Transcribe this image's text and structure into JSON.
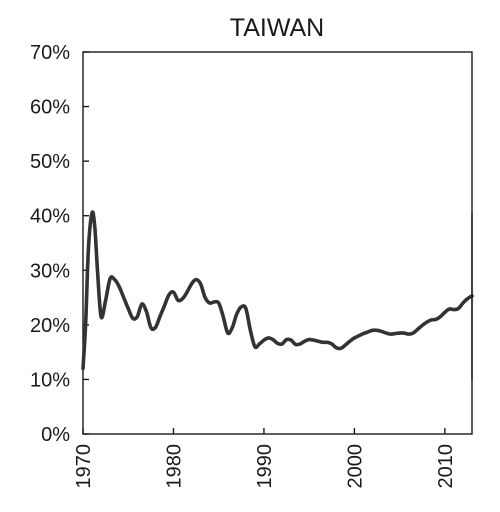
{
  "chart_data": {
    "type": "line",
    "title": "TAIWAN",
    "xlabel": "",
    "ylabel": "",
    "xlim": [
      1970,
      2013
    ],
    "ylim": [
      0,
      70
    ],
    "xticks": [
      1970,
      1980,
      1990,
      2000,
      2010
    ],
    "xtick_labels": [
      "1970",
      "1980",
      "1990",
      "2000",
      "2010"
    ],
    "yticks": [
      0,
      10,
      20,
      30,
      40,
      50,
      60,
      70
    ],
    "ytick_labels": [
      "0%",
      "10%",
      "20%",
      "30%",
      "40%",
      "50%",
      "60%",
      "70%"
    ],
    "grid": false,
    "legend": "none",
    "series": [
      {
        "x": [
          1970.0,
          1970.3,
          1970.6,
          1971.0,
          1971.3,
          1971.6,
          1972.0,
          1972.5,
          1973.0,
          1973.5,
          1974.0,
          1974.5,
          1975.0,
          1975.5,
          1976.0,
          1976.5,
          1977.0,
          1977.5,
          1978.0,
          1978.5,
          1979.0,
          1979.5,
          1980.0,
          1980.5,
          1981.0,
          1981.5,
          1982.0,
          1982.5,
          1983.0,
          1983.5,
          1984.0,
          1984.5,
          1985.0,
          1985.5,
          1986.0,
          1986.5,
          1987.0,
          1987.5,
          1988.0,
          1988.5,
          1989.0,
          1989.5,
          1990.0,
          1990.5,
          1991.0,
          1991.5,
          1992.0,
          1992.5,
          1993.0,
          1993.5,
          1994.0,
          1994.5,
          1995.0,
          1995.5,
          1996.0,
          1996.5,
          1997.0,
          1997.5,
          1998.0,
          1998.5,
          1999.0,
          1999.5,
          2000.0,
          2000.5,
          2001.0,
          2001.5,
          2002.0,
          2002.5,
          2003.0,
          2003.5,
          2004.0,
          2004.5,
          2005.0,
          2005.5,
          2006.0,
          2006.5,
          2007.0,
          2007.5,
          2008.0,
          2008.5,
          2009.0,
          2009.5,
          2010.0,
          2010.5,
          2011.0,
          2011.5,
          2012.0,
          2012.5,
          2013.0
        ],
        "y": [
          12.0,
          20.5,
          34.0,
          40.5,
          38.0,
          30.0,
          21.5,
          24.5,
          28.5,
          28.3,
          27.0,
          25.0,
          23.0,
          21.2,
          21.5,
          23.8,
          22.5,
          19.5,
          19.5,
          21.5,
          23.5,
          25.5,
          26.0,
          24.5,
          24.8,
          26.0,
          27.5,
          28.3,
          27.5,
          25.0,
          24.0,
          24.2,
          24.0,
          21.5,
          18.5,
          19.5,
          22.0,
          23.3,
          23.0,
          19.0,
          16.0,
          16.5,
          17.2,
          17.6,
          17.3,
          16.6,
          16.5,
          17.3,
          17.2,
          16.4,
          16.5,
          17.0,
          17.3,
          17.2,
          17.0,
          16.8,
          16.8,
          16.5,
          15.8,
          15.7,
          16.3,
          17.0,
          17.6,
          18.0,
          18.4,
          18.7,
          19.0,
          19.0,
          18.8,
          18.5,
          18.3,
          18.4,
          18.5,
          18.5,
          18.3,
          18.5,
          19.2,
          19.9,
          20.5,
          20.9,
          21.0,
          21.5,
          22.3,
          22.9,
          22.8,
          23.0,
          24.0,
          24.8,
          25.3
        ]
      }
    ]
  }
}
